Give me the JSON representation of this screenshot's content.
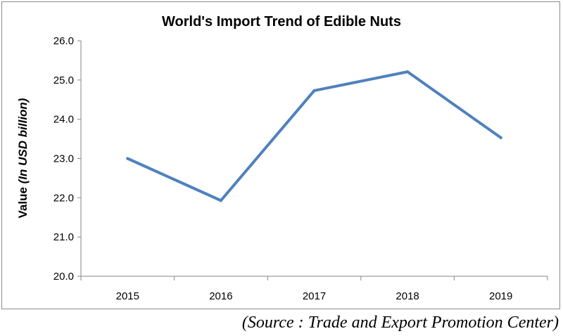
{
  "chart_data": {
    "type": "line",
    "title": "World's  Import Trend of Edible Nuts",
    "xlabel": "",
    "ylabel": "Value (In USD billion)",
    "ylabel_parts": {
      "plain": "Value ",
      "italic": "(In USD billion)"
    },
    "categories": [
      "2015",
      "2016",
      "2017",
      "2018",
      "2019"
    ],
    "series": [
      {
        "values": [
          23.0,
          21.93,
          24.73,
          25.21,
          23.53
        ]
      }
    ],
    "ylim": [
      20.0,
      26.0
    ],
    "y_ticks": [
      "20.0",
      "21.0",
      "22.0",
      "23.0",
      "24.0",
      "25.0",
      "26.0"
    ],
    "grid": false,
    "legend": "none",
    "line_color": "#4f81bd"
  },
  "source_note": "(Source : Trade and Export Promotion Center)"
}
